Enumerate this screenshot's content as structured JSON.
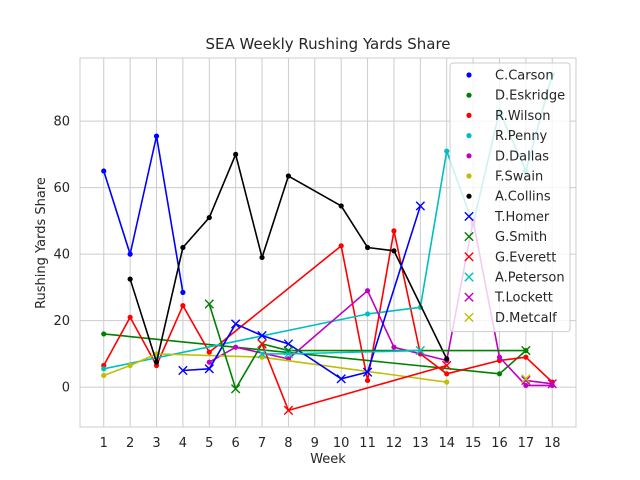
{
  "chart_data": {
    "type": "line",
    "title": "SEA Weekly Rushing Yards Share",
    "xlabel": "Week",
    "ylabel": "Rushing Yards Share",
    "xlim": [
      0.1,
      18.9
    ],
    "ylim": [
      -12,
      99
    ],
    "xticks": [
      1,
      2,
      3,
      4,
      5,
      6,
      7,
      8,
      9,
      10,
      11,
      12,
      13,
      14,
      15,
      16,
      17,
      18
    ],
    "yticks": [
      0,
      20,
      40,
      60,
      80
    ],
    "grid": true,
    "legend_position": "top-right",
    "series": [
      {
        "name": "C.Carson",
        "color": "#0000ff",
        "marker": "dot",
        "x": [
          1,
          2,
          3,
          4,
          14,
          15,
          16,
          17,
          18
        ],
        "y": [
          65,
          40,
          75.5,
          28.5,
          null,
          null,
          null,
          null,
          null
        ]
      },
      {
        "name": "D.Eskridge",
        "color": "#008000",
        "marker": "dot",
        "x": [
          1,
          16,
          17
        ],
        "y": [
          16,
          4,
          11
        ]
      },
      {
        "name": "R.Wilson",
        "color": "#ff0000",
        "marker": "dot",
        "x": [
          1,
          2,
          3,
          4,
          5,
          10,
          11,
          12,
          13,
          14,
          16,
          17,
          18
        ],
        "y": [
          6.5,
          21,
          6.5,
          24.5,
          10.5,
          42.5,
          2,
          47,
          10,
          4,
          8,
          9,
          1.5
        ]
      },
      {
        "name": "R.Penny",
        "color": "#00bfbf",
        "marker": "dot",
        "x": [
          1,
          11,
          13,
          14,
          15,
          16,
          17,
          18
        ],
        "y": [
          5.5,
          22,
          24,
          71,
          49,
          83,
          65,
          94
        ]
      },
      {
        "name": "D.Dallas",
        "color": "#bf00bf",
        "marker": "dot",
        "x": [
          5,
          6,
          8,
          11,
          12,
          14,
          15,
          16,
          17,
          18
        ],
        "y": [
          7.5,
          12,
          8.5,
          29,
          12,
          8,
          50,
          9,
          0.5,
          0.5
        ]
      },
      {
        "name": "F.Swain",
        "color": "#bfbf00",
        "marker": "dot",
        "x": [
          1,
          2,
          3,
          7,
          14
        ],
        "y": [
          3.5,
          6.5,
          10,
          9,
          1.5
        ]
      },
      {
        "name": "A.Collins",
        "color": "#000000",
        "marker": "dot",
        "x": [
          2,
          3,
          4,
          5,
          6,
          7,
          8,
          10,
          11,
          12,
          14
        ],
        "y": [
          32.5,
          7.5,
          42,
          51,
          70,
          39,
          63.5,
          54.5,
          42,
          41,
          8.5
        ]
      },
      {
        "name": "T.Homer",
        "color": "#0000ff",
        "marker": "x",
        "x": [
          4,
          5,
          6,
          7,
          8,
          10,
          11,
          13
        ],
        "y": [
          5,
          5.5,
          19,
          15.5,
          13,
          2.5,
          4.5,
          54.5
        ]
      },
      {
        "name": "G.Smith",
        "color": "#008000",
        "marker": "x",
        "x": [
          5,
          6,
          7,
          8,
          17
        ],
        "y": [
          25,
          -0.5,
          13,
          11,
          11
        ]
      },
      {
        "name": "G.Everett",
        "color": "#ff0000",
        "marker": "x",
        "x": [
          7,
          8,
          14
        ],
        "y": [
          13,
          -7,
          6.5
        ]
      },
      {
        "name": "A.Peterson",
        "color": "#00bfbf",
        "marker": "x",
        "x": [
          7,
          8,
          13
        ],
        "y": [
          10,
          10,
          11
        ]
      },
      {
        "name": "T.Lockett",
        "color": "#bf00bf",
        "marker": "x",
        "x": [
          17,
          18
        ],
        "y": [
          2,
          1
        ]
      },
      {
        "name": "D.Metcalf",
        "color": "#bfbf00",
        "marker": "x",
        "x": [
          17
        ],
        "y": [
          2.5
        ]
      }
    ]
  }
}
